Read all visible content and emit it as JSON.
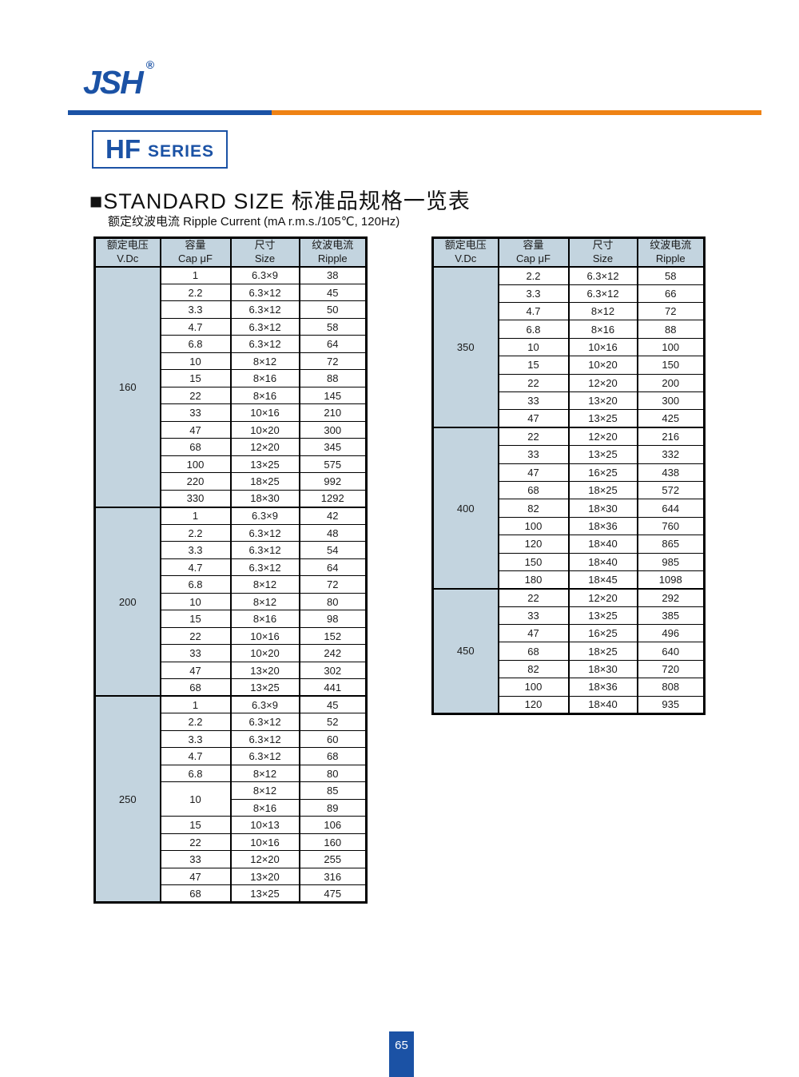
{
  "page": {
    "logo_text": "JSH",
    "registered_mark": "®",
    "series_badge": {
      "main": "HF",
      "sub": "SERIES"
    },
    "section_title": "■STANDARD SIZE 标准品规格一览表",
    "section_subtitle": "额定纹波电流  Ripple Current (mA r.m.s./105℃, 120Hz)",
    "page_number": "65"
  },
  "colors": {
    "brand_blue": "#1b52a5",
    "accent_orange": "#ef8214",
    "table_header_bg": "#c3d4df",
    "table_border": "#000000",
    "text": "#1a1a1a"
  },
  "table_headers": {
    "voltage_l1": "额定电压",
    "voltage_l2": "V.Dc",
    "cap_l1": "容量",
    "cap_l2": "Cap  μF",
    "size_l1": "尺寸",
    "size_l2": "Size",
    "ripple_l1": "纹波电流",
    "ripple_l2": "Ripple"
  },
  "tables": {
    "left": {
      "groups": [
        {
          "voltage": "160",
          "rows": [
            [
              "1",
              "6.3×9",
              "38"
            ],
            [
              "2.2",
              "6.3×12",
              "45"
            ],
            [
              "3.3",
              "6.3×12",
              "50"
            ],
            [
              "4.7",
              "6.3×12",
              "58"
            ],
            [
              "6.8",
              "6.3×12",
              "64"
            ],
            [
              "10",
              "8×12",
              "72"
            ],
            [
              "15",
              "8×16",
              "88"
            ],
            [
              "22",
              "8×16",
              "145"
            ],
            [
              "33",
              "10×16",
              "210"
            ],
            [
              "47",
              "10×20",
              "300"
            ],
            [
              "68",
              "12×20",
              "345"
            ],
            [
              "100",
              "13×25",
              "575"
            ],
            [
              "220",
              "18×25",
              "992"
            ],
            [
              "330",
              "18×30",
              "1292"
            ]
          ]
        },
        {
          "voltage": "200",
          "rows": [
            [
              "1",
              "6.3×9",
              "42"
            ],
            [
              "2.2",
              "6.3×12",
              "48"
            ],
            [
              "3.3",
              "6.3×12",
              "54"
            ],
            [
              "4.7",
              "6.3×12",
              "64"
            ],
            [
              "6.8",
              "8×12",
              "72"
            ],
            [
              "10",
              "8×12",
              "80"
            ],
            [
              "15",
              "8×16",
              "98"
            ],
            [
              "22",
              "10×16",
              "152"
            ],
            [
              "33",
              "10×20",
              "242"
            ],
            [
              "47",
              "13×20",
              "302"
            ],
            [
              "68",
              "13×25",
              "441"
            ]
          ]
        },
        {
          "voltage": "250",
          "rows": [
            [
              "1",
              "6.3×9",
              "45"
            ],
            [
              "2.2",
              "6.3×12",
              "52"
            ],
            [
              "3.3",
              "6.3×12",
              "60"
            ],
            [
              "4.7",
              "6.3×12",
              "68"
            ],
            [
              "6.8",
              "8×12",
              "80"
            ],
            [
              "10",
              "8×12",
              "85",
              2
            ],
            [
              null,
              "8×16",
              "89"
            ],
            [
              "15",
              "10×13",
              "106"
            ],
            [
              "22",
              "10×16",
              "160"
            ],
            [
              "33",
              "12×20",
              "255"
            ],
            [
              "47",
              "13×20",
              "316"
            ],
            [
              "68",
              "13×25",
              "475"
            ]
          ]
        }
      ]
    },
    "right": {
      "groups": [
        {
          "voltage": "350",
          "rows": [
            [
              "2.2",
              "6.3×12",
              "58"
            ],
            [
              "3.3",
              "6.3×12",
              "66"
            ],
            [
              "4.7",
              "8×12",
              "72"
            ],
            [
              "6.8",
              "8×16",
              "88"
            ],
            [
              "10",
              "10×16",
              "100"
            ],
            [
              "15",
              "10×20",
              "150"
            ],
            [
              "22",
              "12×20",
              "200"
            ],
            [
              "33",
              "13×20",
              "300"
            ],
            [
              "47",
              "13×25",
              "425"
            ]
          ]
        },
        {
          "voltage": "400",
          "rows": [
            [
              "22",
              "12×20",
              "216"
            ],
            [
              "33",
              "13×25",
              "332"
            ],
            [
              "47",
              "16×25",
              "438"
            ],
            [
              "68",
              "18×25",
              "572"
            ],
            [
              "82",
              "18×30",
              "644"
            ],
            [
              "100",
              "18×36",
              "760"
            ],
            [
              "120",
              "18×40",
              "865"
            ],
            [
              "150",
              "18×40",
              "985"
            ],
            [
              "180",
              "18×45",
              "1098"
            ]
          ]
        },
        {
          "voltage": "450",
          "rows": [
            [
              "22",
              "12×20",
              "292"
            ],
            [
              "33",
              "13×25",
              "385"
            ],
            [
              "47",
              "16×25",
              "496"
            ],
            [
              "68",
              "18×25",
              "640"
            ],
            [
              "82",
              "18×30",
              "720"
            ],
            [
              "100",
              "18×36",
              "808"
            ],
            [
              "120",
              "18×40",
              "935"
            ]
          ]
        }
      ]
    }
  }
}
